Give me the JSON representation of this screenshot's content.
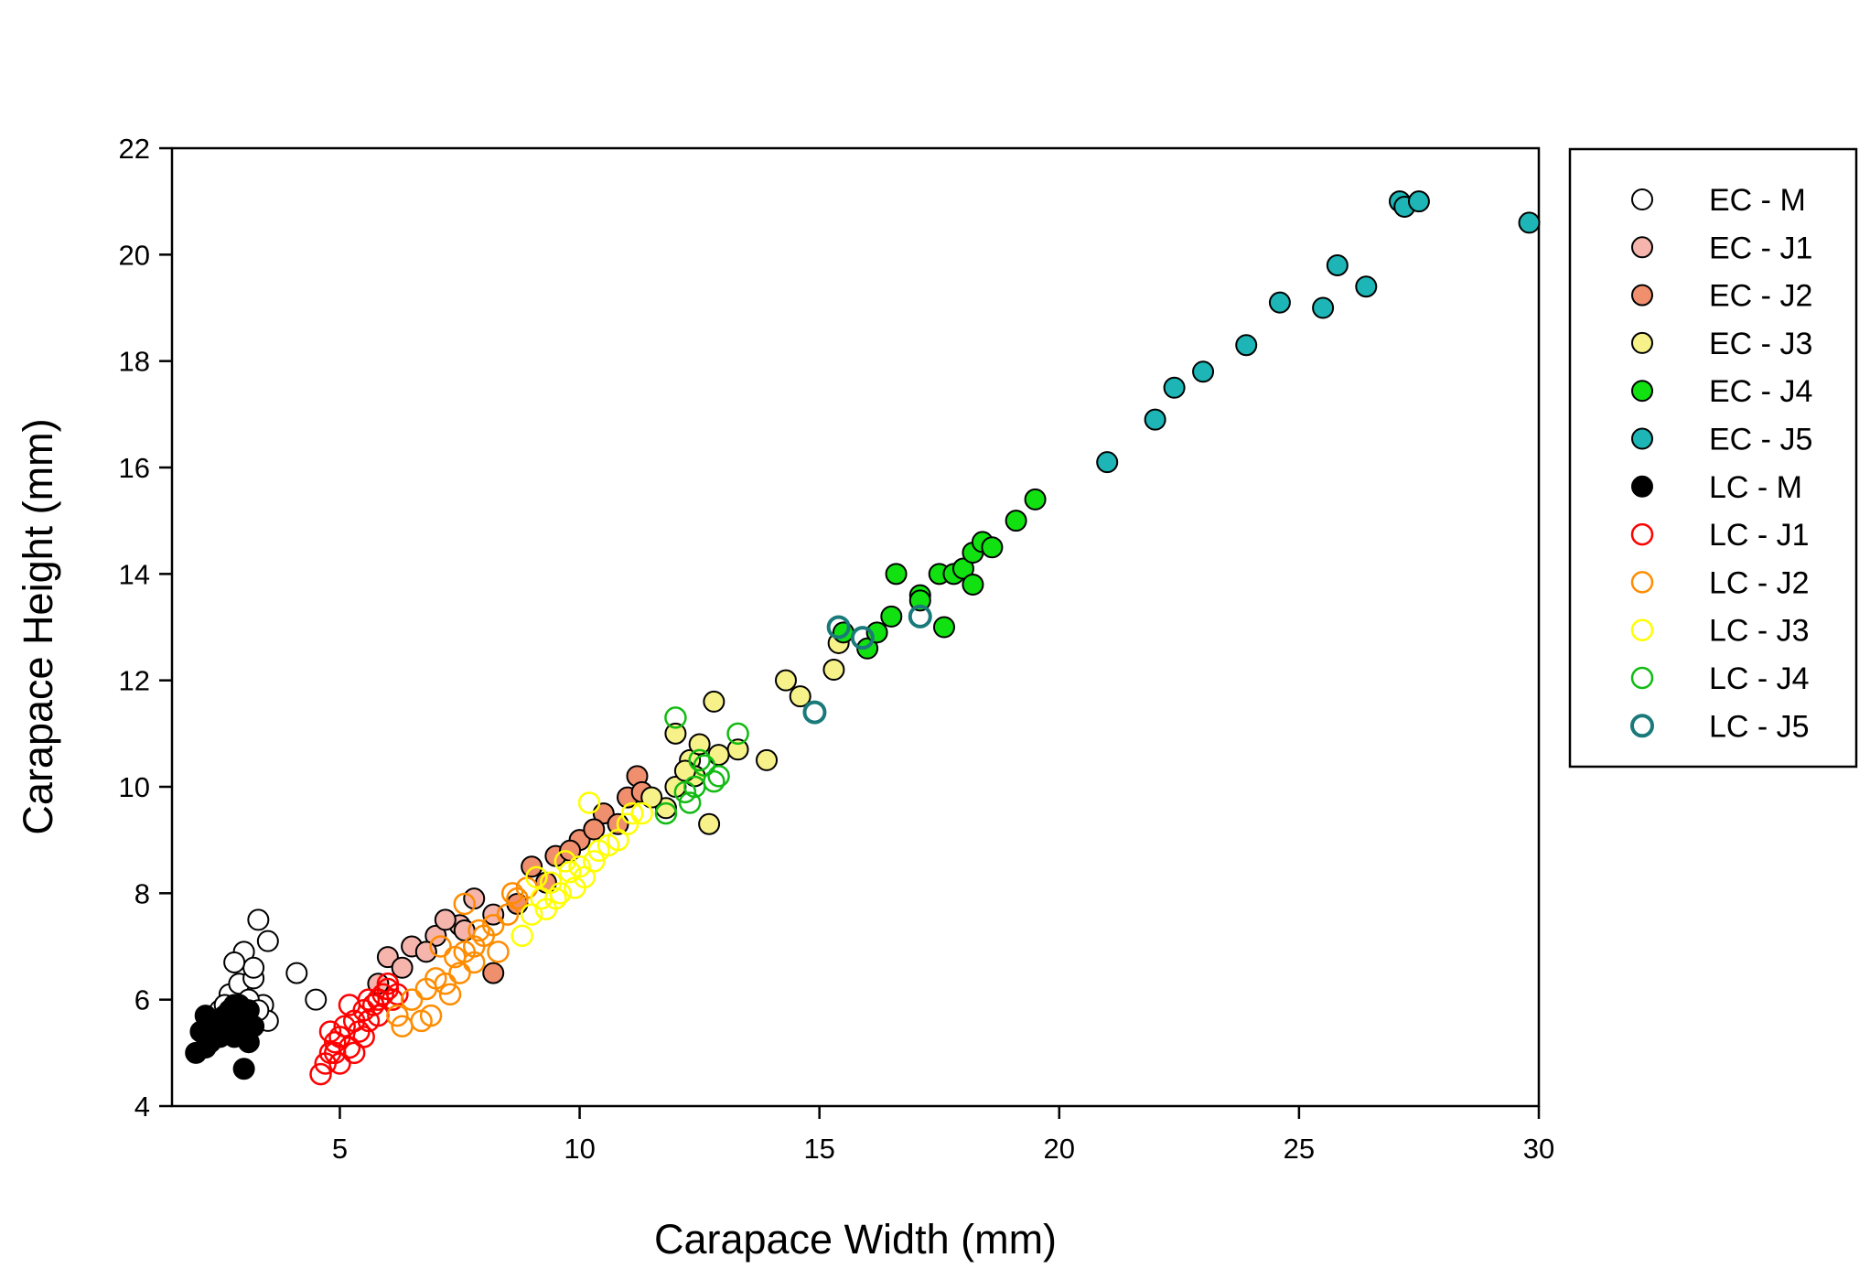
{
  "chart_data": {
    "type": "scatter",
    "title": "",
    "xlabel": "Carapace Width (mm)",
    "ylabel": "Carapace Height (mm)",
    "xlim": [
      1.5,
      30
    ],
    "ylim": [
      4,
      22
    ],
    "xticks": [
      5,
      10,
      15,
      20,
      25,
      30
    ],
    "yticks": [
      4,
      6,
      8,
      10,
      12,
      14,
      16,
      18,
      20,
      22
    ],
    "grid": false,
    "legend_position": "right, outside plot",
    "series": [
      {
        "name": "EC - M",
        "fill": "#ffffff",
        "stroke": "#000000",
        "filled": true,
        "points": [
          [
            2.7,
            6.1
          ],
          [
            2.9,
            6.3
          ],
          [
            3.0,
            6.9
          ],
          [
            3.2,
            6.4
          ],
          [
            3.3,
            7.5
          ],
          [
            3.5,
            7.1
          ],
          [
            3.2,
            6.6
          ],
          [
            2.8,
            6.7
          ],
          [
            3.4,
            5.9
          ],
          [
            3.5,
            5.6
          ],
          [
            4.1,
            6.5
          ],
          [
            4.5,
            6.0
          ],
          [
            2.5,
            5.8
          ],
          [
            3.0,
            5.5
          ],
          [
            2.6,
            5.9
          ],
          [
            3.1,
            6.0
          ],
          [
            3.3,
            5.8
          ]
        ]
      },
      {
        "name": "EC - J1",
        "fill": "#f5b5ad",
        "stroke": "#000000",
        "filled": true,
        "points": [
          [
            6.0,
            6.8
          ],
          [
            6.5,
            7.0
          ],
          [
            7.0,
            7.2
          ],
          [
            7.5,
            7.4
          ],
          [
            7.8,
            7.9
          ],
          [
            8.2,
            7.6
          ],
          [
            6.8,
            6.9
          ],
          [
            7.2,
            7.5
          ],
          [
            5.8,
            6.3
          ],
          [
            6.3,
            6.6
          ],
          [
            7.6,
            7.3
          ]
        ]
      },
      {
        "name": "EC - J2",
        "fill": "#f08f6e",
        "stroke": "#000000",
        "filled": true,
        "points": [
          [
            9.0,
            8.5
          ],
          [
            9.5,
            8.7
          ],
          [
            10.0,
            9.0
          ],
          [
            10.5,
            9.5
          ],
          [
            11.0,
            9.8
          ],
          [
            11.2,
            10.2
          ],
          [
            11.3,
            9.9
          ],
          [
            8.2,
            6.5
          ],
          [
            9.8,
            8.8
          ],
          [
            10.8,
            9.3
          ],
          [
            10.3,
            9.2
          ],
          [
            8.7,
            7.8
          ],
          [
            9.3,
            8.2
          ]
        ]
      },
      {
        "name": "EC - J3",
        "fill": "#f7f189",
        "stroke": "#000000",
        "filled": true,
        "points": [
          [
            12.0,
            11.0
          ],
          [
            12.3,
            10.5
          ],
          [
            12.5,
            10.8
          ],
          [
            12.8,
            11.6
          ],
          [
            13.3,
            10.7
          ],
          [
            13.9,
            10.5
          ],
          [
            14.3,
            12.0
          ],
          [
            14.6,
            11.7
          ],
          [
            15.3,
            12.2
          ],
          [
            15.4,
            12.7
          ],
          [
            12.7,
            9.3
          ],
          [
            12.0,
            10.0
          ],
          [
            12.4,
            10.2
          ],
          [
            11.8,
            9.6
          ],
          [
            12.9,
            10.6
          ],
          [
            12.2,
            10.3
          ],
          [
            11.5,
            9.8
          ]
        ]
      },
      {
        "name": "EC - J4",
        "fill": "#11e011",
        "stroke": "#000000",
        "filled": true,
        "points": [
          [
            16.0,
            12.6
          ],
          [
            16.2,
            12.9
          ],
          [
            16.5,
            13.2
          ],
          [
            16.6,
            14.0
          ],
          [
            17.1,
            13.6
          ],
          [
            17.1,
            13.5
          ],
          [
            17.5,
            14.0
          ],
          [
            17.6,
            13.0
          ],
          [
            17.8,
            14.0
          ],
          [
            18.0,
            14.1
          ],
          [
            18.2,
            14.4
          ],
          [
            18.2,
            13.8
          ],
          [
            18.4,
            14.6
          ],
          [
            18.6,
            14.5
          ],
          [
            19.1,
            15.0
          ],
          [
            19.5,
            15.4
          ],
          [
            15.5,
            12.9
          ]
        ]
      },
      {
        "name": "EC - J5",
        "fill": "#1db5b5",
        "stroke": "#000000",
        "filled": true,
        "points": [
          [
            21.0,
            16.1
          ],
          [
            22.0,
            16.9
          ],
          [
            22.4,
            17.5
          ],
          [
            23.0,
            17.8
          ],
          [
            23.9,
            18.3
          ],
          [
            24.6,
            19.1
          ],
          [
            25.5,
            19.0
          ],
          [
            25.8,
            19.8
          ],
          [
            26.4,
            19.4
          ],
          [
            27.1,
            21.0
          ],
          [
            27.2,
            20.9
          ],
          [
            27.5,
            21.0
          ],
          [
            29.8,
            20.6
          ]
        ]
      },
      {
        "name": "LC - M",
        "fill": "#000000",
        "stroke": "#000000",
        "filled": true,
        "points": [
          [
            2.0,
            5.0
          ],
          [
            2.1,
            5.4
          ],
          [
            2.2,
            5.7
          ],
          [
            2.3,
            5.2
          ],
          [
            2.4,
            5.5
          ],
          [
            2.5,
            5.6
          ],
          [
            2.6,
            5.4
          ],
          [
            2.7,
            5.8
          ],
          [
            2.8,
            5.3
          ],
          [
            2.9,
            5.9
          ],
          [
            3.0,
            5.6
          ],
          [
            3.1,
            5.8
          ],
          [
            3.2,
            5.5
          ],
          [
            2.2,
            5.1
          ],
          [
            2.5,
            5.3
          ],
          [
            3.0,
            4.7
          ],
          [
            2.8,
            5.9
          ],
          [
            2.6,
            5.7
          ],
          [
            2.4,
            5.4
          ],
          [
            3.1,
            5.2
          ],
          [
            2.9,
            5.5
          ],
          [
            2.3,
            5.6
          ],
          [
            2.7,
            5.5
          ]
        ]
      },
      {
        "name": "LC - J1",
        "fill": "none",
        "stroke": "#ff0000",
        "filled": false,
        "points": [
          [
            4.6,
            4.6
          ],
          [
            4.7,
            4.8
          ],
          [
            4.8,
            5.0
          ],
          [
            4.9,
            5.2
          ],
          [
            5.0,
            5.3
          ],
          [
            5.1,
            5.5
          ],
          [
            5.2,
            5.1
          ],
          [
            5.3,
            5.6
          ],
          [
            5.4,
            5.4
          ],
          [
            5.5,
            5.8
          ],
          [
            5.6,
            5.6
          ],
          [
            5.7,
            5.9
          ],
          [
            5.8,
            6.0
          ],
          [
            5.9,
            6.1
          ],
          [
            6.0,
            6.2
          ],
          [
            6.1,
            6.0
          ],
          [
            5.0,
            4.8
          ],
          [
            4.8,
            5.4
          ],
          [
            5.2,
            5.9
          ],
          [
            5.5,
            5.3
          ],
          [
            5.8,
            5.7
          ],
          [
            6.0,
            6.3
          ],
          [
            5.3,
            5.0
          ],
          [
            4.9,
            5.0
          ],
          [
            5.6,
            6.0
          ],
          [
            6.2,
            6.1
          ]
        ]
      },
      {
        "name": "LC - J2",
        "fill": "none",
        "stroke": "#ff8c00",
        "filled": false,
        "points": [
          [
            6.2,
            5.7
          ],
          [
            6.3,
            5.5
          ],
          [
            6.5,
            6.0
          ],
          [
            6.7,
            5.6
          ],
          [
            6.9,
            5.7
          ],
          [
            7.0,
            6.4
          ],
          [
            7.2,
            6.3
          ],
          [
            7.4,
            6.8
          ],
          [
            7.5,
            6.5
          ],
          [
            7.6,
            7.8
          ],
          [
            7.8,
            7.0
          ],
          [
            8.0,
            7.2
          ],
          [
            8.2,
            7.4
          ],
          [
            8.5,
            7.6
          ],
          [
            8.7,
            7.9
          ],
          [
            8.9,
            8.1
          ],
          [
            7.3,
            6.1
          ],
          [
            7.8,
            6.7
          ],
          [
            8.3,
            6.9
          ],
          [
            7.1,
            7.0
          ],
          [
            7.9,
            7.3
          ],
          [
            6.8,
            6.2
          ],
          [
            7.6,
            6.9
          ],
          [
            8.6,
            8.0
          ]
        ]
      },
      {
        "name": "LC - J3",
        "fill": "none",
        "stroke": "#ffff00",
        "filled": false,
        "points": [
          [
            8.8,
            7.2
          ],
          [
            9.0,
            7.6
          ],
          [
            9.2,
            7.9
          ],
          [
            9.4,
            8.2
          ],
          [
            9.6,
            8.0
          ],
          [
            9.8,
            8.4
          ],
          [
            10.0,
            8.5
          ],
          [
            10.2,
            9.7
          ],
          [
            10.4,
            8.8
          ],
          [
            10.6,
            8.9
          ],
          [
            10.8,
            9.0
          ],
          [
            11.0,
            9.3
          ],
          [
            11.3,
            9.5
          ],
          [
            9.5,
            7.9
          ],
          [
            9.9,
            8.1
          ],
          [
            10.3,
            8.6
          ],
          [
            9.1,
            8.3
          ],
          [
            9.7,
            8.6
          ],
          [
            10.1,
            8.3
          ],
          [
            9.3,
            7.7
          ],
          [
            11.1,
            9.5
          ]
        ]
      },
      {
        "name": "LC - J4",
        "fill": "none",
        "stroke": "#11bb11",
        "filled": false,
        "points": [
          [
            11.8,
            9.5
          ],
          [
            12.0,
            11.3
          ],
          [
            12.3,
            9.7
          ],
          [
            12.4,
            10.0
          ],
          [
            12.5,
            10.5
          ],
          [
            12.6,
            10.4
          ],
          [
            12.8,
            10.1
          ],
          [
            12.9,
            10.2
          ],
          [
            13.3,
            11.0
          ],
          [
            12.2,
            9.9
          ]
        ]
      },
      {
        "name": "LC - J5",
        "fill": "none",
        "stroke": "#1a7a7a",
        "filled": false,
        "thick": true,
        "points": [
          [
            14.9,
            11.4
          ],
          [
            15.4,
            13.0
          ],
          [
            15.9,
            12.8
          ],
          [
            17.1,
            13.2
          ]
        ]
      }
    ]
  }
}
